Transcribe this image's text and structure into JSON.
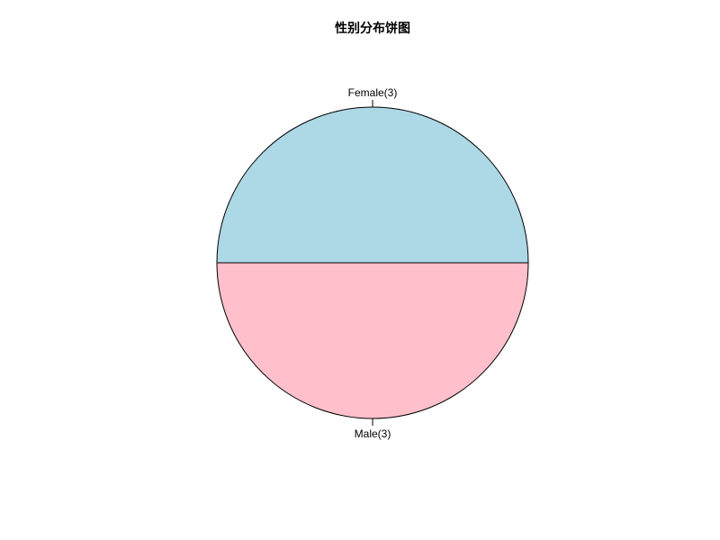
{
  "chart_data": {
    "type": "pie",
    "title": "性别分布饼图",
    "slices": [
      {
        "label": "Female(3)",
        "value": 3,
        "color": "#ADD8E6"
      },
      {
        "label": "Male(3)",
        "value": 3,
        "color": "#FFC0CB"
      }
    ],
    "start_angle_deg": 0,
    "direction": "counterclockwise",
    "border_color": "#000000",
    "legend": "none"
  }
}
